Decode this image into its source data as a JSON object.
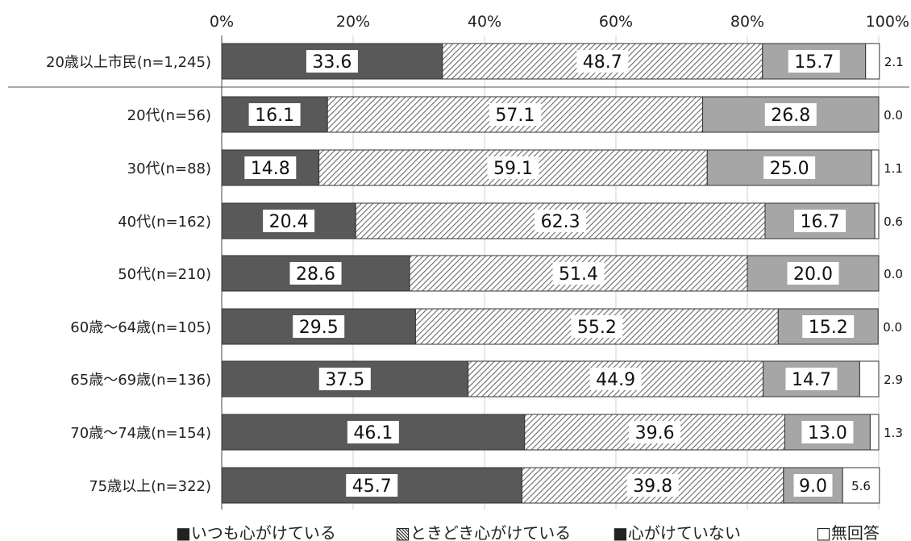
{
  "chart_data": {
    "type": "bar",
    "orientation": "horizontal",
    "stacked": true,
    "xlim": [
      0,
      100
    ],
    "x_ticks": [
      "0%",
      "20%",
      "40%",
      "60%",
      "80%",
      "100%"
    ],
    "categories": [
      "20歳以上市民(n=1,245)",
      "20代(n=56)",
      "30代(n=88)",
      "40代(n=162)",
      "50代(n=210)",
      "60歳～64歳(n=105)",
      "65歳～69歳(n=136)",
      "70歳～74歳(n=154)",
      "75歳以上(n=322)"
    ],
    "series": [
      {
        "name": "いつも心がけている",
        "color": "#595959",
        "pattern": "solid",
        "values": [
          33.6,
          16.1,
          14.8,
          20.4,
          28.6,
          29.5,
          37.5,
          46.1,
          45.7
        ],
        "labels": [
          "33.6",
          "16.1",
          "14.8",
          "20.4",
          "28.6",
          "29.5",
          "37.5",
          "46.1",
          "45.7"
        ]
      },
      {
        "name": "ときどき心がけている",
        "color": "#8c8c8c",
        "pattern": "diagonal-hatch",
        "values": [
          48.7,
          57.1,
          59.1,
          62.3,
          51.4,
          55.2,
          44.9,
          39.6,
          39.8
        ],
        "labels": [
          "48.7",
          "57.1",
          "59.1",
          "62.3",
          "51.4",
          "55.2",
          "44.9",
          "39.6",
          "39.8"
        ]
      },
      {
        "name": "心がけていない",
        "color": "#a6a6a6",
        "pattern": "solid",
        "values": [
          15.7,
          26.8,
          25.0,
          16.7,
          20.0,
          15.2,
          14.7,
          13.0,
          9.0
        ],
        "labels": [
          "15.7",
          "26.8",
          "25.0",
          "16.7",
          "20.0",
          "15.2",
          "14.7",
          "13.0",
          "9.0"
        ]
      },
      {
        "name": "無回答",
        "color": "#ffffff",
        "pattern": "solid",
        "values": [
          2.1,
          0.0,
          1.1,
          0.6,
          0.0,
          0.0,
          2.9,
          1.3,
          5.6
        ],
        "labels": [
          "2.1",
          "0.0",
          "1.1",
          "0.6",
          "0.0",
          "0.0",
          "2.9",
          "1.3",
          "5.6"
        ]
      }
    ],
    "legend": [
      "■いつも心がけている",
      "▧ときどき心がけている",
      "■心がけていない",
      "□無回答"
    ],
    "legend_position": "bottom",
    "grid": true
  }
}
